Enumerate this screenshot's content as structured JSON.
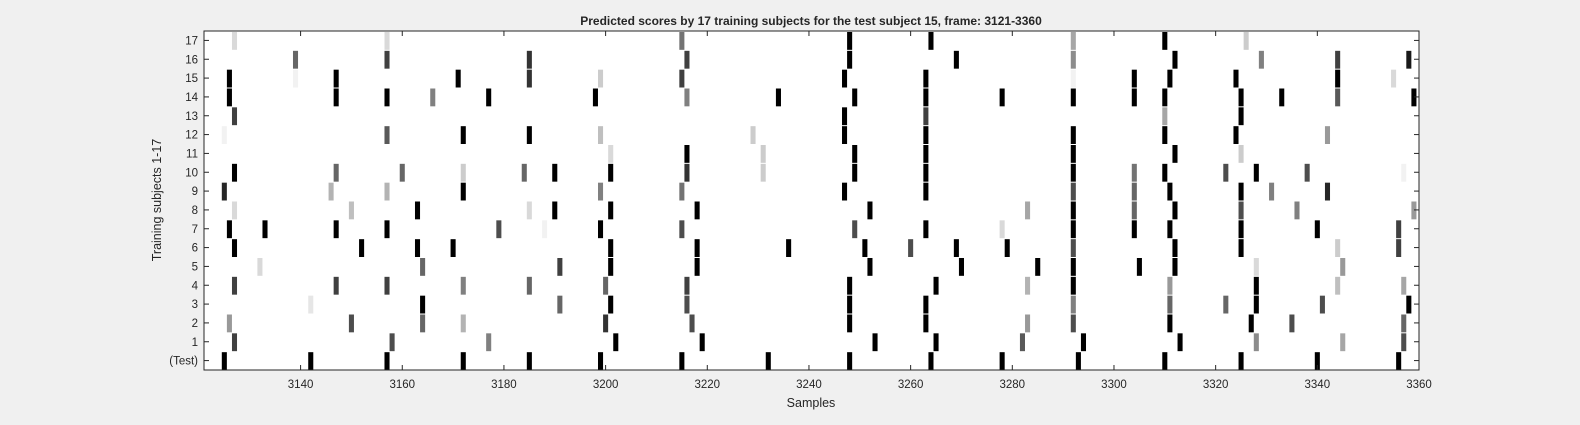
{
  "chart_data": {
    "type": "heatmap",
    "title": "Predicted scores by 17 training subjects for the test subject 15, frame: 3121-3360",
    "xlabel": "Samples",
    "ylabel": "Training subjects 1-17",
    "xlim": [
      3121,
      3360
    ],
    "x_ticks": [
      3140,
      3160,
      3180,
      3200,
      3220,
      3240,
      3260,
      3280,
      3300,
      3320,
      3340,
      3360
    ],
    "row_labels": [
      "(Test)",
      "1",
      "2",
      "3",
      "4",
      "5",
      "6",
      "7",
      "8",
      "9",
      "10",
      "11",
      "12",
      "13",
      "14",
      "15",
      "16",
      "17"
    ],
    "colormap": "gray (white = 0, black = 1)",
    "grid": false,
    "background": "#ffffff",
    "rows": [
      {
        "label": "(Test)",
        "cells": [
          [
            3125,
            1
          ],
          [
            3142,
            1
          ],
          [
            3157,
            1
          ],
          [
            3172,
            1
          ],
          [
            3185,
            1
          ],
          [
            3199,
            1
          ],
          [
            3215,
            1
          ],
          [
            3232,
            1
          ],
          [
            3248,
            1
          ],
          [
            3264,
            1
          ],
          [
            3278,
            1
          ],
          [
            3293,
            1
          ],
          [
            3310,
            1
          ],
          [
            3325,
            1
          ],
          [
            3340,
            1
          ],
          [
            3356,
            1
          ]
        ]
      },
      {
        "label": "1",
        "cells": [
          [
            3127,
            0.75
          ],
          [
            3158,
            0.7
          ],
          [
            3177,
            0.5
          ],
          [
            3202,
            1
          ],
          [
            3219,
            1
          ],
          [
            3253,
            1
          ],
          [
            3265,
            1
          ],
          [
            3282,
            0.65
          ],
          [
            3294,
            1
          ],
          [
            3313,
            1
          ],
          [
            3328,
            0.45
          ],
          [
            3345,
            0.35
          ],
          [
            3357,
            0.7
          ]
        ]
      },
      {
        "label": "2",
        "cells": [
          [
            3126,
            0.4
          ],
          [
            3150,
            0.7
          ],
          [
            3164,
            0.6
          ],
          [
            3172,
            0.3
          ],
          [
            3200,
            0.8
          ],
          [
            3217,
            0.7
          ],
          [
            3248,
            1
          ],
          [
            3263,
            1
          ],
          [
            3283,
            0.4
          ],
          [
            3292,
            0.7
          ],
          [
            3311,
            1
          ],
          [
            3327,
            1
          ],
          [
            3335,
            0.7
          ],
          [
            3357,
            0.6
          ]
        ]
      },
      {
        "label": "3",
        "cells": [
          [
            3142,
            0.1
          ],
          [
            3164,
            1
          ],
          [
            3191,
            0.6
          ],
          [
            3201,
            1
          ],
          [
            3216,
            0.7
          ],
          [
            3248,
            1
          ],
          [
            3263,
            1
          ],
          [
            3292,
            0.5
          ],
          [
            3311,
            0.6
          ],
          [
            3322,
            0.6
          ],
          [
            3328,
            1
          ],
          [
            3341,
            0.7
          ],
          [
            3358,
            1
          ]
        ]
      },
      {
        "label": "4",
        "cells": [
          [
            3127,
            0.75
          ],
          [
            3147,
            0.75
          ],
          [
            3157,
            0.75
          ],
          [
            3172,
            0.5
          ],
          [
            3185,
            0.6
          ],
          [
            3200,
            0.6
          ],
          [
            3216,
            0.75
          ],
          [
            3248,
            1
          ],
          [
            3265,
            1
          ],
          [
            3283,
            0.3
          ],
          [
            3292,
            1
          ],
          [
            3311,
            0.4
          ],
          [
            3328,
            1
          ],
          [
            3344,
            0.25
          ],
          [
            3357,
            0.35
          ]
        ]
      },
      {
        "label": "5",
        "cells": [
          [
            3132,
            0.15
          ],
          [
            3164,
            0.6
          ],
          [
            3191,
            0.75
          ],
          [
            3201,
            1
          ],
          [
            3218,
            1
          ],
          [
            3252,
            1
          ],
          [
            3270,
            1
          ],
          [
            3285,
            1
          ],
          [
            3292,
            1
          ],
          [
            3305,
            1
          ],
          [
            3312,
            1
          ],
          [
            3328,
            0.15
          ],
          [
            3345,
            0.4
          ]
        ]
      },
      {
        "label": "6",
        "cells": [
          [
            3127,
            1
          ],
          [
            3152,
            1
          ],
          [
            3163,
            1
          ],
          [
            3170,
            1
          ],
          [
            3201,
            1
          ],
          [
            3218,
            1
          ],
          [
            3236,
            1
          ],
          [
            3251,
            1
          ],
          [
            3260,
            0.7
          ],
          [
            3269,
            1
          ],
          [
            3279,
            1
          ],
          [
            3292,
            0.7
          ],
          [
            3312,
            1
          ],
          [
            3325,
            1
          ],
          [
            3344,
            0.2
          ],
          [
            3356,
            0.75
          ]
        ]
      },
      {
        "label": "7",
        "cells": [
          [
            3126,
            1
          ],
          [
            3133,
            1
          ],
          [
            3147,
            1
          ],
          [
            3157,
            1
          ],
          [
            3179,
            0.7
          ],
          [
            3188,
            0.05
          ],
          [
            3199,
            1
          ],
          [
            3215,
            0.7
          ],
          [
            3249,
            0.7
          ],
          [
            3263,
            1
          ],
          [
            3278,
            0.15
          ],
          [
            3292,
            1
          ],
          [
            3304,
            1
          ],
          [
            3311,
            1
          ],
          [
            3325,
            1
          ],
          [
            3340,
            1
          ],
          [
            3356,
            0.75
          ]
        ]
      },
      {
        "label": "8",
        "cells": [
          [
            3127,
            0.15
          ],
          [
            3150,
            0.25
          ],
          [
            3163,
            1
          ],
          [
            3185,
            0.15
          ],
          [
            3190,
            1
          ],
          [
            3201,
            1
          ],
          [
            3218,
            1
          ],
          [
            3252,
            1
          ],
          [
            3283,
            0.35
          ],
          [
            3292,
            1
          ],
          [
            3304,
            0.6
          ],
          [
            3312,
            1
          ],
          [
            3325,
            0.7
          ],
          [
            3336,
            0.5
          ],
          [
            3359,
            0.4
          ]
        ]
      },
      {
        "label": "9",
        "cells": [
          [
            3125,
            0.85
          ],
          [
            3146,
            0.3
          ],
          [
            3157,
            0.3
          ],
          [
            3172,
            1
          ],
          [
            3199,
            0.5
          ],
          [
            3215,
            0.55
          ],
          [
            3247,
            1
          ],
          [
            3263,
            1
          ],
          [
            3292,
            0.7
          ],
          [
            3304,
            0.6
          ],
          [
            3311,
            1
          ],
          [
            3325,
            1
          ],
          [
            3331,
            0.5
          ],
          [
            3342,
            0.85
          ]
        ]
      },
      {
        "label": "10",
        "cells": [
          [
            3127,
            1
          ],
          [
            3147,
            0.6
          ],
          [
            3160,
            0.6
          ],
          [
            3172,
            0.2
          ],
          [
            3184,
            0.6
          ],
          [
            3190,
            1
          ],
          [
            3201,
            1
          ],
          [
            3216,
            0.8
          ],
          [
            3231,
            0.2
          ],
          [
            3249,
            1
          ],
          [
            3263,
            1
          ],
          [
            3292,
            1
          ],
          [
            3304,
            0.55
          ],
          [
            3310,
            1
          ],
          [
            3322,
            0.7
          ],
          [
            3328,
            1
          ],
          [
            3338,
            0.7
          ],
          [
            3357,
            0.05
          ]
        ]
      },
      {
        "label": "11",
        "cells": [
          [
            3201,
            0.15
          ],
          [
            3216,
            1
          ],
          [
            3231,
            0.2
          ],
          [
            3249,
            1
          ],
          [
            3263,
            1
          ],
          [
            3292,
            1
          ],
          [
            3312,
            1
          ],
          [
            3325,
            0.2
          ]
        ]
      },
      {
        "label": "12",
        "cells": [
          [
            3125,
            0.05
          ],
          [
            3157,
            0.65
          ],
          [
            3172,
            1
          ],
          [
            3185,
            1
          ],
          [
            3199,
            0.25
          ],
          [
            3229,
            0.2
          ],
          [
            3247,
            1
          ],
          [
            3263,
            1
          ],
          [
            3292,
            1
          ],
          [
            3310,
            1
          ],
          [
            3324,
            1
          ],
          [
            3342,
            0.4
          ]
        ]
      },
      {
        "label": "13",
        "cells": [
          [
            3127,
            0.75
          ],
          [
            3247,
            1
          ],
          [
            3263,
            0.75
          ],
          [
            3310,
            0.35
          ],
          [
            3325,
            1
          ]
        ]
      },
      {
        "label": "14",
        "cells": [
          [
            3126,
            1
          ],
          [
            3147,
            1
          ],
          [
            3157,
            1
          ],
          [
            3166,
            0.5
          ],
          [
            3177,
            1
          ],
          [
            3198,
            1
          ],
          [
            3216,
            0.5
          ],
          [
            3234,
            1
          ],
          [
            3249,
            1
          ],
          [
            3263,
            1
          ],
          [
            3278,
            1
          ],
          [
            3292,
            1
          ],
          [
            3304,
            1
          ],
          [
            3310,
            1
          ],
          [
            3325,
            1
          ],
          [
            3333,
            1
          ],
          [
            3344,
            0.65
          ],
          [
            3359,
            1
          ]
        ]
      },
      {
        "label": "15",
        "cells": [
          [
            3126,
            1
          ],
          [
            3139,
            0.05
          ],
          [
            3147,
            1
          ],
          [
            3171,
            1
          ],
          [
            3185,
            0.8
          ],
          [
            3199,
            0.2
          ],
          [
            3215,
            0.75
          ],
          [
            3247,
            1
          ],
          [
            3263,
            1
          ],
          [
            3292,
            0.05
          ],
          [
            3304,
            1
          ],
          [
            3311,
            1
          ],
          [
            3324,
            1
          ],
          [
            3344,
            1
          ],
          [
            3355,
            0.15
          ]
        ]
      },
      {
        "label": "16",
        "cells": [
          [
            3139,
            0.6
          ],
          [
            3157,
            0.75
          ],
          [
            3185,
            0.8
          ],
          [
            3216,
            0.75
          ],
          [
            3248,
            1
          ],
          [
            3269,
            1
          ],
          [
            3292,
            0.45
          ],
          [
            3312,
            1
          ],
          [
            3329,
            0.5
          ],
          [
            3344,
            0.75
          ],
          [
            3358,
            0.9
          ]
        ]
      },
      {
        "label": "17",
        "cells": [
          [
            3127,
            0.15
          ],
          [
            3157,
            0.15
          ],
          [
            3215,
            0.55
          ],
          [
            3248,
            1
          ],
          [
            3264,
            1
          ],
          [
            3292,
            0.35
          ],
          [
            3310,
            1
          ],
          [
            3326,
            0.2
          ]
        ]
      }
    ]
  }
}
